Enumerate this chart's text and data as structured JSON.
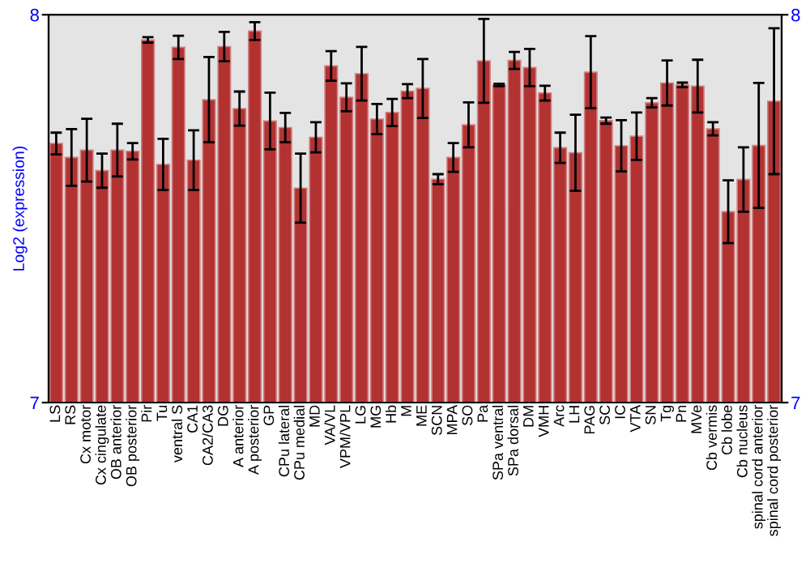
{
  "chart_data": {
    "type": "bar",
    "ylabel": "Log2 (expression)",
    "categories": [
      "LS",
      "RS",
      "Cx motor",
      "Cx cingulate",
      "OB anterior",
      "OB posterior",
      "Pir",
      "Tu",
      "ventral S",
      "CA1",
      "CA2/CA3",
      "DG",
      "A anterior",
      "A posterior",
      "GP",
      "CPu lateral",
      "CPu medial",
      "MD",
      "VA/VL",
      "VPM/VPL",
      "LG",
      "MG",
      "Hb",
      "M",
      "ME",
      "SCN",
      "MPA",
      "SO",
      "Pa",
      "SPa ventral",
      "SPa dorsal",
      "DM",
      "VMH",
      "Arc",
      "LH",
      "PAG",
      "SC",
      "IC",
      "VTA",
      "SN",
      "Tg",
      "Pn",
      "MVe",
      "Cb vermis",
      "Cb lobe",
      "Cb nucleus",
      "spinal cord anterior",
      "spinal cord posterior"
    ],
    "values": [
      7.668,
      7.632,
      7.651,
      7.598,
      7.651,
      7.648,
      7.935,
      7.614,
      7.916,
      7.625,
      7.781,
      7.918,
      7.758,
      7.958,
      7.726,
      7.709,
      7.553,
      7.684,
      7.868,
      7.787,
      7.848,
      7.731,
      7.748,
      7.803,
      7.81,
      7.576,
      7.632,
      7.716,
      7.881,
      7.819,
      7.882,
      7.864,
      7.798,
      7.657,
      7.644,
      7.852,
      7.727,
      7.662,
      7.687,
      7.773,
      7.824,
      7.819,
      7.816,
      7.706,
      7.492,
      7.575,
      7.663,
      7.777
    ],
    "errors": [
      0.028,
      0.073,
      0.081,
      0.044,
      0.068,
      0.021,
      0.007,
      0.066,
      0.03,
      0.077,
      0.11,
      0.038,
      0.044,
      0.023,
      0.073,
      0.038,
      0.089,
      0.039,
      0.038,
      0.036,
      0.069,
      0.039,
      0.035,
      0.018,
      0.076,
      0.013,
      0.037,
      0.058,
      0.108,
      0.003,
      0.022,
      0.048,
      0.019,
      0.039,
      0.098,
      0.093,
      0.008,
      0.066,
      0.061,
      0.012,
      0.058,
      0.006,
      0.068,
      0.017,
      0.081,
      0.083,
      0.161,
      0.188
    ],
    "color": "#b23232",
    "ylim": [
      7,
      8
    ],
    "yticks": [
      7,
      8
    ],
    "y2lim": [
      7,
      8
    ],
    "y2ticks": [
      7,
      8
    ],
    "grid": false,
    "legend": false
  }
}
